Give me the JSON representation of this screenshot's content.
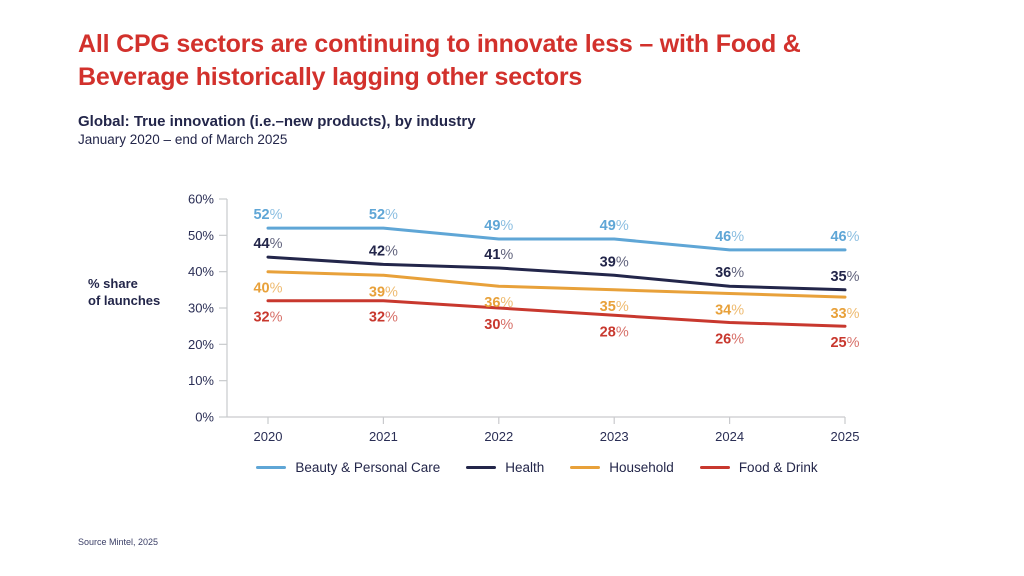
{
  "slide": {
    "title_lines": [
      "All CPG sectors are continuing to innovate less – with Food &",
      "Beverage historically lagging other sectors"
    ],
    "subtitle": "Global: True innovation (i.e.–new products), by industry",
    "date_range": "January 2020 – end of March 2025",
    "source": "Source Mintel, 2025"
  },
  "chart_data": {
    "type": "line",
    "title": "Global: True innovation (i.e.–new products), by industry",
    "subtitle": "January 2020 – end of March 2025",
    "ylabel": "% share of launches",
    "ylabel_lines": [
      "% share",
      "of launches"
    ],
    "x": [
      "2020",
      "2021",
      "2022",
      "2023",
      "2024",
      "2025"
    ],
    "ylim": [
      0,
      60
    ],
    "ytick_step": 10,
    "ytick_suffix": "%",
    "grid": false,
    "data_labels": true,
    "legend_position": "bottom",
    "series": [
      {
        "name": "Beauty & Personal Care",
        "color": "#5FA6D6",
        "values": [
          52,
          52,
          49,
          49,
          46,
          46
        ],
        "label_side": "above"
      },
      {
        "name": "Health",
        "color": "#23264A",
        "values": [
          44,
          42,
          41,
          39,
          36,
          35
        ],
        "label_side": "above"
      },
      {
        "name": "Household",
        "color": "#E8A13A",
        "values": [
          40,
          39,
          36,
          35,
          34,
          33
        ],
        "label_side": "below"
      },
      {
        "name": "Food & Drink",
        "color": "#C8382E",
        "values": [
          32,
          32,
          30,
          28,
          26,
          25
        ],
        "label_side": "below"
      }
    ]
  },
  "theme": {
    "title_color": "#D2312C",
    "text_color": "#23264A",
    "axis_color": "#C9CACD",
    "background": "#FFFFFF"
  }
}
